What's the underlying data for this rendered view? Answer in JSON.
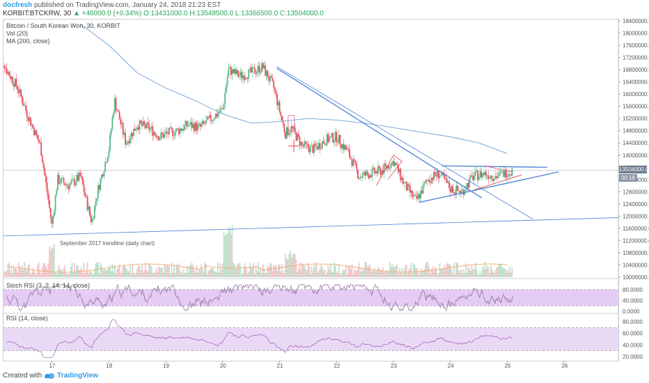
{
  "header": {
    "user": "docfresh",
    "published": "published on TradingView.com, January 24, 2018 21:23 EST"
  },
  "ohlc": {
    "symbol": "KORBIT:BTCKRW, 30",
    "change": "▲ +46000.0 (+0.34%)",
    "o": "O:13431000.0",
    "h": "H:13548500.0",
    "l": "L:13366500.0",
    "c": "C:13504000.0"
  },
  "legend": {
    "title": "Bitcoin / South Korean Won, 30, KORBIT",
    "vol": "Vol (20)",
    "ma": "MA (200, close)"
  },
  "annotation": "September 2017 trendline (daily chart)",
  "stoch_label": "Stoch RSI (3, 3, 14, 14, close)",
  "rsi_label": "RSI (14, close)",
  "price_badge": "13504000.0",
  "price_badge_small": "00:18",
  "footer": {
    "created": "Created with",
    "brand": "TradingView"
  },
  "colors": {
    "up": "#53b987",
    "down": "#eb4d5c",
    "ma": "#6a9ed4",
    "trend": "#4a7fd6",
    "red_line": "#e64545",
    "stoch_band": "#e5ccf5",
    "rsi_band": "#ead9f5"
  },
  "chart_data": [
    {
      "type": "candlestick",
      "title": "Bitcoin / South Korean Won, 30, KORBIT",
      "x_ticks": [
        "17",
        "18",
        "19",
        "20",
        "21",
        "22",
        "23",
        "24",
        "25",
        "26"
      ],
      "y_ticks": [
        "18400000.0",
        "18000000.0",
        "17600000.0",
        "17200000.0",
        "16800000.0",
        "16400000.0",
        "16000000.0",
        "15600000.0",
        "15200000.0",
        "14800000.0",
        "14400000.0",
        "14000000.0",
        "13600000.0",
        "13200000.0",
        "12800000.0",
        "12400000.0",
        "12000000.0",
        "11600000.0",
        "11200000.0",
        "10800000.0",
        "10400000.0",
        "10000000.0"
      ],
      "ylim": [
        10000000,
        18400000
      ],
      "close_path_days": [
        16.0,
        16.2,
        16.4,
        16.6,
        16.8,
        17.0,
        17.1,
        17.3,
        17.5,
        17.7,
        17.8,
        18.0,
        18.1,
        18.3,
        18.5,
        18.7,
        18.9,
        19.0,
        19.2,
        19.4,
        19.6,
        19.8,
        20.0,
        20.1,
        20.3,
        20.5,
        20.7,
        20.9,
        21.1,
        21.2,
        21.4,
        21.6,
        21.8,
        22.0,
        22.2,
        22.4,
        22.6,
        22.8,
        23.0,
        23.2,
        23.4,
        23.6,
        23.8,
        24.0,
        24.2,
        24.4,
        24.6,
        24.8,
        25.0,
        25.1
      ],
      "close_path_values": [
        17900000,
        16800000,
        16200000,
        15200000,
        14300000,
        11700000,
        13200000,
        13000000,
        13300000,
        11800000,
        12800000,
        14200000,
        15800000,
        14400000,
        15000000,
        14900000,
        14600000,
        14700000,
        14800000,
        15000000,
        14900000,
        15200000,
        15500000,
        16800000,
        16600000,
        16700000,
        16900000,
        16200000,
        14700000,
        14900000,
        14300000,
        14200000,
        14500000,
        14600000,
        14100000,
        13300000,
        13400000,
        13500000,
        13800000,
        13000000,
        12500000,
        13200000,
        13400000,
        12900000,
        12800000,
        13300000,
        13400000,
        13300000,
        13450000,
        13504000
      ],
      "ma200_days": [
        17.5,
        18.0,
        18.5,
        19.0,
        19.5,
        20.0,
        20.5,
        21.0,
        21.5,
        22.0,
        22.5,
        23.0,
        23.5,
        24.0,
        24.5,
        25.0
      ],
      "ma200_values": [
        18300000,
        17600000,
        16700000,
        16200000,
        15800000,
        15350000,
        15050000,
        15100000,
        15200000,
        15150000,
        15050000,
        14900000,
        14750000,
        14600000,
        14400000,
        14050000
      ],
      "volume": "bars"
    },
    {
      "type": "line",
      "title": "Stoch RSI (3, 3, 14, 14, close)",
      "y_ticks": [
        "80.0000",
        "40.0000",
        "0.0000"
      ],
      "band": [
        20,
        80
      ]
    },
    {
      "type": "line",
      "title": "RSI (14, close)",
      "y_ticks": [
        "80.0000",
        "60.0000",
        "40.0000",
        "20.0000"
      ],
      "band": [
        30,
        70
      ]
    }
  ]
}
